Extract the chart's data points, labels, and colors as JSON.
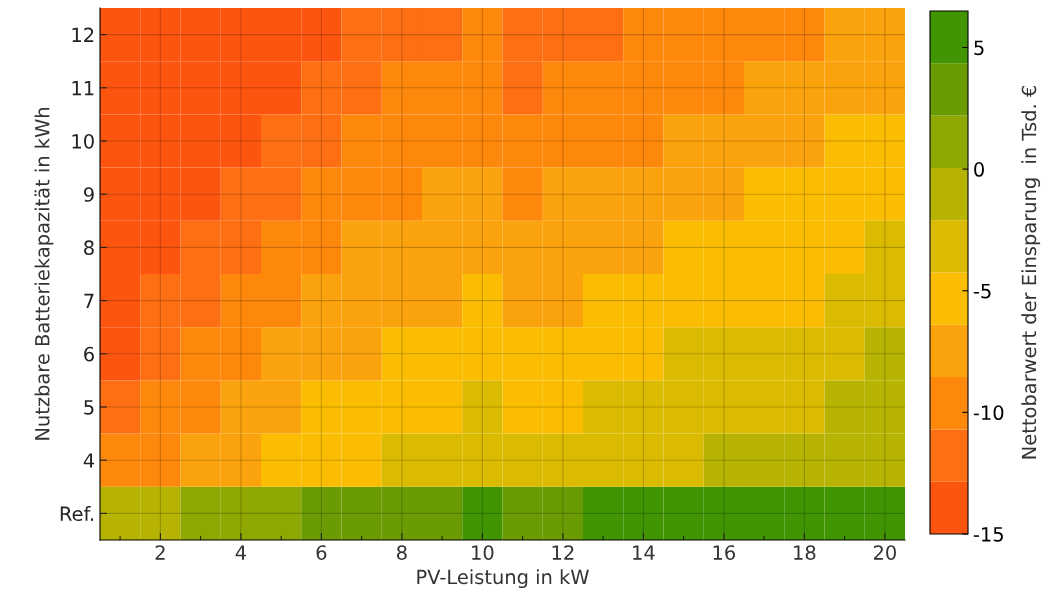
{
  "chart_data": {
    "type": "heatmap",
    "xlabel": "PV-Leistung in kW",
    "ylabel": "Nutzbare Batteriekapazität in kWh",
    "clabel": "Nettobarwert der Einsparung  in Tsd. €",
    "x": [
      1,
      2,
      3,
      4,
      5,
      6,
      7,
      8,
      9,
      10,
      11,
      12,
      13,
      14,
      15,
      16,
      17,
      18,
      19,
      20
    ],
    "xlim": [
      0.5,
      20.5
    ],
    "xticks": [
      2,
      4,
      6,
      8,
      10,
      12,
      14,
      16,
      18,
      20
    ],
    "y_categories": [
      "12",
      "11",
      "10",
      "9",
      "8",
      "7",
      "6",
      "5",
      "4",
      "Ref."
    ],
    "cells": [
      [
        -13.9,
        -13.9,
        -13.9,
        -13.9,
        -13.9,
        -13.9,
        -11.8,
        -11.8,
        -11.8,
        -9.6,
        -11.8,
        -11.8,
        -11.8,
        -9.6,
        -9.6,
        -9.6,
        -9.6,
        -9.6,
        -7.5,
        -7.5
      ],
      [
        -13.9,
        -13.9,
        -13.9,
        -13.9,
        -13.9,
        -11.8,
        -11.8,
        -9.6,
        -9.6,
        -9.6,
        -11.8,
        -9.6,
        -9.6,
        -9.6,
        -9.6,
        -9.6,
        -7.5,
        -7.5,
        -7.5,
        -7.5
      ],
      [
        -13.9,
        -13.9,
        -13.9,
        -13.9,
        -11.8,
        -11.8,
        -9.6,
        -9.6,
        -9.6,
        -9.6,
        -9.6,
        -9.6,
        -9.6,
        -9.6,
        -7.5,
        -7.5,
        -7.5,
        -7.5,
        -5.3,
        -5.3
      ],
      [
        -13.9,
        -13.9,
        -13.9,
        -11.8,
        -11.8,
        -9.6,
        -9.6,
        -9.6,
        -7.5,
        -7.5,
        -9.6,
        -7.5,
        -7.5,
        -7.5,
        -7.5,
        -7.5,
        -5.3,
        -5.3,
        -5.3,
        -5.3
      ],
      [
        -13.9,
        -13.9,
        -11.8,
        -11.8,
        -9.6,
        -9.6,
        -7.5,
        -7.5,
        -7.5,
        -7.5,
        -7.5,
        -7.5,
        -7.5,
        -7.5,
        -5.3,
        -5.3,
        -5.3,
        -5.3,
        -5.3,
        -3.2
      ],
      [
        -13.9,
        -11.8,
        -11.8,
        -9.6,
        -9.6,
        -7.5,
        -7.5,
        -7.5,
        -7.5,
        -5.3,
        -7.5,
        -7.5,
        -5.3,
        -5.3,
        -5.3,
        -5.3,
        -5.3,
        -5.3,
        -3.2,
        -3.2
      ],
      [
        -13.9,
        -11.8,
        -9.6,
        -9.6,
        -7.5,
        -7.5,
        -7.5,
        -5.3,
        -5.3,
        -5.3,
        -5.3,
        -5.3,
        -5.3,
        -5.3,
        -3.2,
        -3.2,
        -3.2,
        -3.2,
        -3.2,
        -1.0
      ],
      [
        -11.8,
        -9.6,
        -9.6,
        -7.5,
        -7.5,
        -5.3,
        -5.3,
        -5.3,
        -5.3,
        -3.2,
        -5.3,
        -5.3,
        -3.2,
        -3.2,
        -3.2,
        -3.2,
        -3.2,
        -3.2,
        -1.0,
        -1.0
      ],
      [
        -9.6,
        -9.6,
        -7.5,
        -7.5,
        -5.3,
        -5.3,
        -5.3,
        -3.2,
        -3.2,
        -3.2,
        -3.2,
        -3.2,
        -3.2,
        -3.2,
        -3.2,
        -1.0,
        -1.0,
        -1.0,
        -1.0,
        -1.0
      ],
      [
        -1.0,
        -1.0,
        1.1,
        1.1,
        1.1,
        3.3,
        3.3,
        3.3,
        3.3,
        5.4,
        3.3,
        3.3,
        5.4,
        5.4,
        5.4,
        5.4,
        5.4,
        5.4,
        5.4,
        5.4
      ]
    ],
    "clim": [
      -15,
      6.5
    ],
    "cticks": [
      5,
      0,
      -5,
      -10,
      -15
    ],
    "colors": [
      "#fd5510",
      "#fd6f12",
      "#fd880c",
      "#fba30c",
      "#fbbd02",
      "#dbbb02",
      "#b7b302",
      "#8fa702",
      "#6a9b02",
      "#419502"
    ],
    "grid": true
  }
}
